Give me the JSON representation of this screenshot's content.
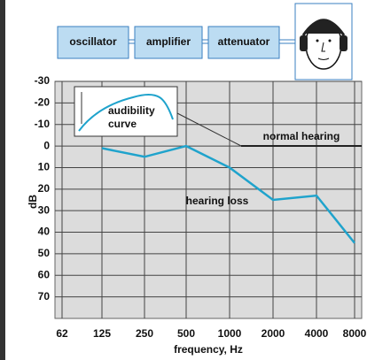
{
  "diagram": {
    "blocks": [
      "oscillator",
      "amplifier",
      "attenuator"
    ]
  },
  "chart_data": {
    "type": "line",
    "x_label": "frequency, Hz",
    "y_label": "dB",
    "categories": [
      "62",
      "125",
      "250",
      "500",
      "1000",
      "2000",
      "4000",
      "8000"
    ],
    "series": [
      {
        "name": "hearing loss",
        "color": "#1fa3cc",
        "values": [
          null,
          1,
          5,
          0,
          10,
          25,
          23,
          45
        ]
      }
    ],
    "ylim": [
      -30,
      80
    ],
    "yticks": [
      -30,
      -20,
      -10,
      0,
      10,
      20,
      30,
      40,
      50,
      60,
      70
    ],
    "y_inverted": true,
    "grid": true,
    "annotations": {
      "inset_label": [
        "audibility",
        "curve"
      ],
      "reference": "normal hearing"
    }
  }
}
